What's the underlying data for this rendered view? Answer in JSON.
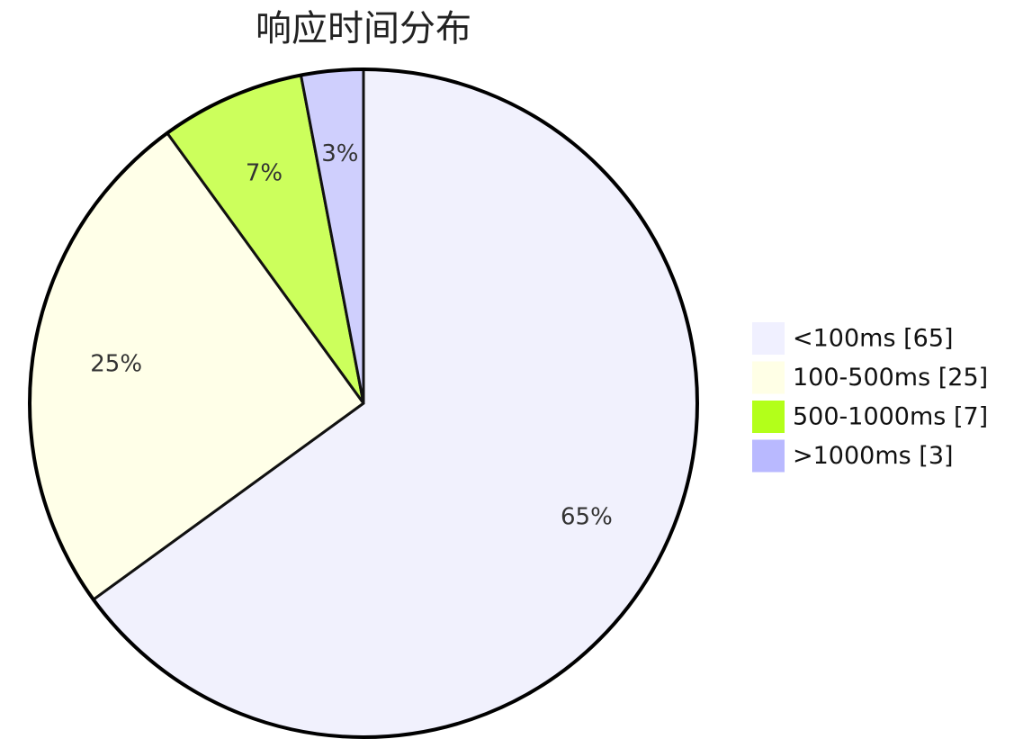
{
  "chart_data": {
    "type": "pie",
    "title": "响应时间分布",
    "categories": [
      "<100ms",
      "100-500ms",
      "500-1000ms",
      ">1000ms"
    ],
    "values": [
      65,
      25,
      7,
      3
    ],
    "percent_labels": [
      "65%",
      "25%",
      "7%",
      "3%"
    ],
    "legend_labels": [
      "<100ms [65]",
      "100-500ms [25]",
      "500-1000ms [7]",
      ">1000ms [3]"
    ],
    "colors": [
      "#f0f0ff",
      "#ffffe6",
      "#b3ff1a",
      "#b9b9ff"
    ],
    "slice_colors": [
      "#f1f1fd",
      "#ffffe8",
      "#ccff5c",
      "#cfcffd"
    ],
    "start": "12 o'clock",
    "direction": "clockwise",
    "legend_placement": "right"
  }
}
